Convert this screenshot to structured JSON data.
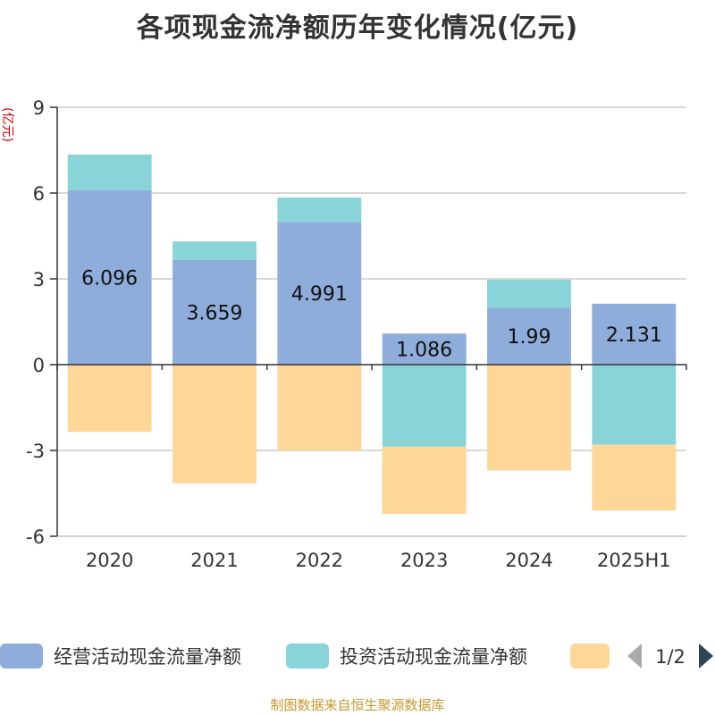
{
  "chart_data": {
    "type": "bar",
    "stacked": true,
    "title": "各项现金流净额历年变化情况(亿元)",
    "ylabel": "(亿元)",
    "categories": [
      "2020",
      "2021",
      "2022",
      "2023",
      "2024",
      "2025H1"
    ],
    "ylim": [
      -6,
      9
    ],
    "yticks": [
      9,
      6,
      3,
      0,
      -3,
      -6
    ],
    "grid": true,
    "legend_position": "bottom",
    "series": [
      {
        "name": "经营活动现金流量净额",
        "color": "#8fadda",
        "values": [
          6.096,
          3.659,
          4.991,
          1.086,
          1.99,
          2.131
        ],
        "labels": [
          "6.096",
          "3.659",
          "4.991",
          "1.086",
          "1.99",
          "2.131"
        ]
      },
      {
        "name": "投资活动现金流量净额",
        "color": "#88d4d8",
        "values": [
          1.25,
          0.65,
          0.85,
          -2.87,
          0.98,
          -2.8
        ]
      },
      {
        "name": "",
        "color": "#fed798",
        "values": [
          -2.35,
          -4.15,
          -3.0,
          -2.35,
          -3.7,
          -2.3
        ]
      }
    ]
  },
  "legend": {
    "page_indicator": "1/2"
  },
  "footer": {
    "source": "制图数据来自恒生聚源数据库"
  }
}
